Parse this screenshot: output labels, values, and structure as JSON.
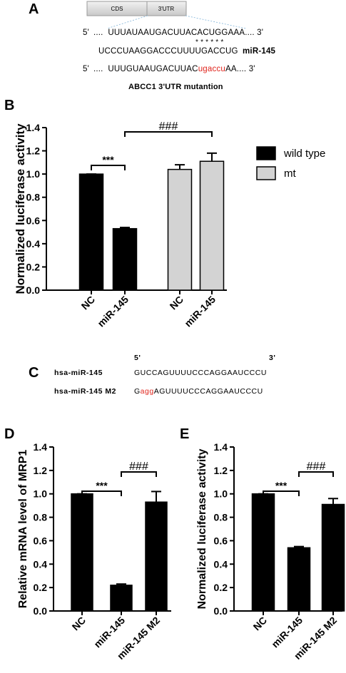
{
  "panel_a": {
    "letter": "A",
    "gene_boxes": {
      "cds": "CDS",
      "utr": "3'UTR"
    },
    "wt_prefix": "5'",
    "wt_seq": "....  UUUAUAAUGACUUACACUGGAAA.... 3'",
    "stars": "* * * * * *",
    "mir_seq": "UCCCUAAGGACCCUUUUGACCUG",
    "mir_label": "miR-145",
    "mut_prefix": "5'",
    "mut_seq_a": "....  UUUGUAAUGACUUAC",
    "mut_seq_red": "ugaccu",
    "mut_seq_b": "AA.... 3'",
    "caption": "ABCC1 3'UTR mutantion"
  },
  "panel_c": {
    "letter": "C",
    "end5": "5'",
    "end3": "3'",
    "row1_label": "hsa-miR-145",
    "row1_seq": "GUCCAGUUUUCCCAGGAAUCCCU",
    "row2_label": "hsa-miR-145 M2",
    "row2_seq_a": "G",
    "row2_seq_red": "agg",
    "row2_seq_b": "AGUUUUCCCAGGAAUCCCU"
  },
  "colors": {
    "wild_type": "#000000",
    "mt": "#d3d3d3",
    "bar_default": "#000000",
    "mutation_red": "#e0261e"
  },
  "chart_data": [
    {
      "letter": "B",
      "type": "bar",
      "ylabel": "Normalized luciferase activity",
      "ylim": [
        0,
        1.4
      ],
      "yticks": [
        "0.0",
        "0.2",
        "0.4",
        "0.6",
        "0.8",
        "1.0",
        "1.2",
        "1.4"
      ],
      "categories": [
        "NC",
        "miR-145",
        "NC",
        "miR-145"
      ],
      "values": [
        1.0,
        0.53,
        1.04,
        1.11
      ],
      "errors": [
        0.0,
        0.01,
        0.04,
        0.07
      ],
      "bar_series": [
        0,
        0,
        1,
        1
      ],
      "series": [
        {
          "name": "wild type"
        },
        {
          "name": "mt"
        }
      ],
      "legend": "right",
      "significance": [
        {
          "from": 0,
          "to": 1,
          "label": "***"
        },
        {
          "from": 1,
          "to": 3,
          "label": "###"
        }
      ]
    },
    {
      "letter": "D",
      "type": "bar",
      "ylabel": "Relative mRNA level of MRP1",
      "ylim": [
        0,
        1.4
      ],
      "yticks": [
        "0.0",
        "0.2",
        "0.4",
        "0.6",
        "0.8",
        "1.0",
        "1.2",
        "1.4"
      ],
      "categories": [
        "NC",
        "miR-145",
        "miR-145 M2"
      ],
      "values": [
        1.0,
        0.22,
        0.93
      ],
      "errors": [
        0.0,
        0.01,
        0.09
      ],
      "significance": [
        {
          "from": 0,
          "to": 1,
          "label": "***"
        },
        {
          "from": 1,
          "to": 2,
          "label": "###"
        }
      ]
    },
    {
      "letter": "E",
      "type": "bar",
      "ylabel": "Normalized luciferase activity",
      "ylim": [
        0,
        1.4
      ],
      "yticks": [
        "0.0",
        "0.2",
        "0.4",
        "0.6",
        "0.8",
        "1.0",
        "1.2",
        "1.4"
      ],
      "categories": [
        "NC",
        "miR-145",
        "miR-145 M2"
      ],
      "values": [
        1.0,
        0.54,
        0.91
      ],
      "errors": [
        0.0,
        0.01,
        0.05
      ],
      "significance": [
        {
          "from": 0,
          "to": 1,
          "label": "***"
        },
        {
          "from": 1,
          "to": 2,
          "label": "###"
        }
      ]
    }
  ]
}
